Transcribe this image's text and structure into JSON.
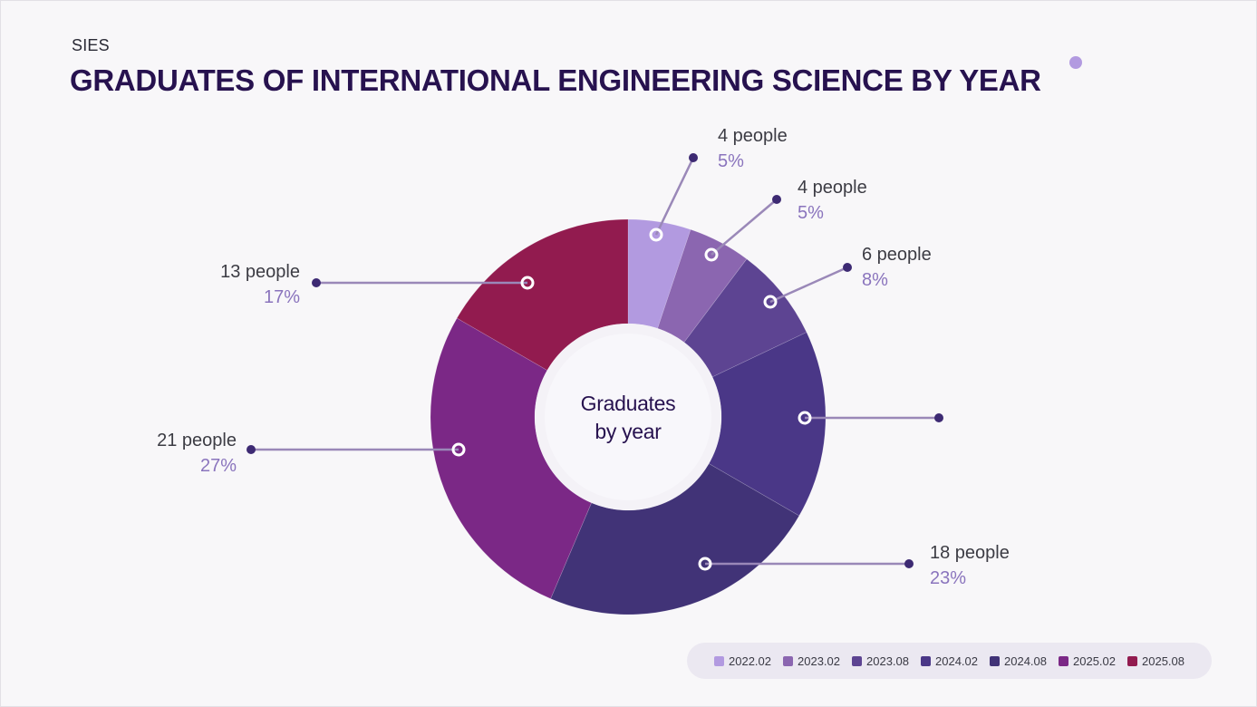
{
  "header": {
    "brand": "SIES",
    "title": "GRADUATES OF INTERNATIONAL ENGINEERING SCIENCE BY YEAR"
  },
  "center_label": {
    "line1": "Graduates",
    "line2": "by year"
  },
  "chart_data": {
    "type": "pie",
    "variant": "donut",
    "title": "Graduates of International Engineering Science by Year",
    "center_text": "Graduates by year",
    "start_angle": "12 o'clock",
    "direction": "clockwise",
    "legend_position": "bottom-right",
    "categories": [
      "2022.02",
      "2023.02",
      "2023.08",
      "2024.02",
      "2024.08",
      "2025.02",
      "2025.08"
    ],
    "values": [
      4,
      4,
      6,
      12,
      18,
      21,
      13
    ],
    "unit": "people",
    "colors": [
      "#b29ae0",
      "#8b66b0",
      "#5d4492",
      "#4a3787",
      "#413377",
      "#7b2886",
      "#921b4f"
    ],
    "labels": [
      {
        "people": "4 people",
        "percent": "5%"
      },
      {
        "people": "4 people",
        "percent": "5%"
      },
      {
        "people": "6 people",
        "percent": "8%"
      },
      {
        "people": "",
        "percent": ""
      },
      {
        "people": "18 people",
        "percent": "23%"
      },
      {
        "people": "21 people",
        "percent": "27%"
      },
      {
        "people": "13 people",
        "percent": "17%"
      }
    ]
  },
  "legend": [
    {
      "label": "2022.02",
      "color": "#b29ae0"
    },
    {
      "label": "2023.02",
      "color": "#8b66b0"
    },
    {
      "label": "2023.08",
      "color": "#5d4492"
    },
    {
      "label": "2024.02",
      "color": "#4a3787"
    },
    {
      "label": "2024.08",
      "color": "#413377"
    },
    {
      "label": "2025.02",
      "color": "#7b2886"
    },
    {
      "label": "2025.08",
      "color": "#921b4f"
    }
  ]
}
